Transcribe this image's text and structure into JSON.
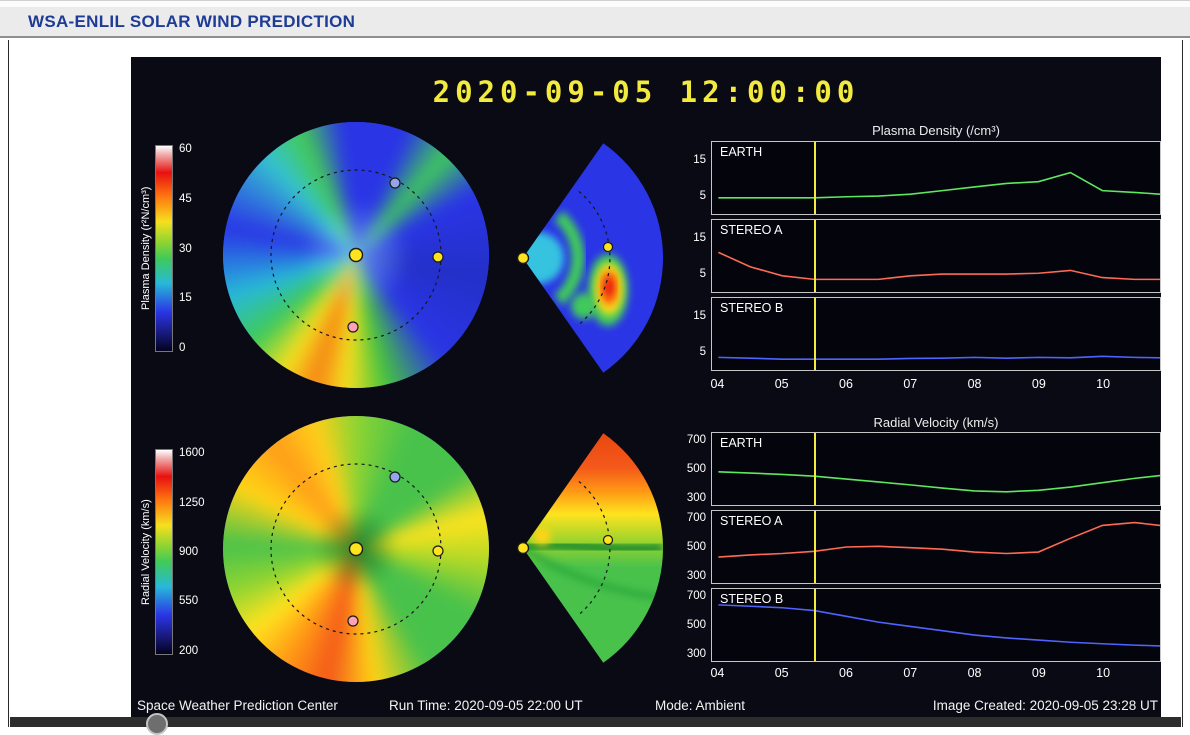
{
  "header": {
    "title": "WSA-ENLIL SOLAR WIND PREDICTION"
  },
  "viz": {
    "timestamp": "2020-09-05 12:00:00",
    "footer": {
      "source": "Space Weather Prediction Center",
      "run_time": "Run Time: 2020-09-05 22:00 UT",
      "mode": "Mode: Ambient",
      "created": "Image Created: 2020-09-05 23:28 UT"
    }
  },
  "density_map": {
    "colorbar_label": "Plasma Density (r²N/cm³)",
    "colorbar_ticks": [
      "60",
      "45",
      "30",
      "15",
      "0"
    ]
  },
  "velocity_map": {
    "colorbar_label": "Radial Velocity (km/s)",
    "colorbar_ticks": [
      "1600",
      "1250",
      "900",
      "550",
      "200"
    ]
  },
  "colors": {
    "background": "#0a0a14",
    "accent_yellow": "#f2ea3c",
    "sun": "#ffe31e",
    "earth": "#ffe31e",
    "stereo_a": "#ffa0b4",
    "stereo_b": "#97a3ea",
    "earth_line": "#5ee85e",
    "stereo_a_line": "#ff6a55",
    "stereo_b_line": "#4f63ff",
    "header_text": "#1e3c96"
  },
  "chart_data": [
    {
      "type": "line",
      "title": "Plasma Density (/cm³)",
      "x": [
        4,
        4.5,
        5,
        5.5,
        6,
        6.5,
        7,
        7.5,
        8,
        8.5,
        9,
        9.5,
        10,
        10.5,
        10.9
      ],
      "xlim": [
        3.9,
        10.9
      ],
      "ylim": [
        0,
        20
      ],
      "yticks": [
        15,
        5
      ],
      "xticks": [
        "04",
        "05",
        "06",
        "07",
        "08",
        "09",
        "10"
      ],
      "xtick_values": [
        4,
        5,
        6,
        7,
        8,
        9,
        10
      ],
      "now_marker_x": 5.5,
      "grid": false,
      "legend_position": "in-panel-labels",
      "series": [
        {
          "name": "EARTH",
          "color": "#5ee85e",
          "values": [
            4.5,
            4.5,
            4.5,
            4.5,
            4.8,
            5,
            5.5,
            6.5,
            7.5,
            8.5,
            9,
            11.5,
            6.5,
            6,
            5.5
          ]
        },
        {
          "name": "STEREO A",
          "color": "#ff6a55",
          "values": [
            11,
            7,
            4.5,
            3.5,
            3.5,
            3.5,
            4.5,
            5,
            5,
            5,
            5.2,
            6,
            4,
            3.5,
            3.5
          ]
        },
        {
          "name": "STEREO B",
          "color": "#4f63ff",
          "values": [
            3.5,
            3.3,
            3,
            3,
            3,
            3,
            3.2,
            3.3,
            3.5,
            3.3,
            3.5,
            3.4,
            3.8,
            3.5,
            3.4
          ]
        }
      ]
    },
    {
      "type": "line",
      "title": "Radial Velocity (km/s)",
      "x": [
        4,
        4.5,
        5,
        5.5,
        6,
        6.5,
        7,
        7.5,
        8,
        8.5,
        9,
        9.5,
        10,
        10.5,
        10.9
      ],
      "xlim": [
        3.9,
        10.9
      ],
      "ylim": [
        250,
        750
      ],
      "yticks": [
        700,
        500,
        300
      ],
      "xticks": [
        "04",
        "05",
        "06",
        "07",
        "08",
        "09",
        "10"
      ],
      "xtick_values": [
        4,
        5,
        6,
        7,
        8,
        9,
        10
      ],
      "now_marker_x": 5.5,
      "grid": false,
      "legend_position": "in-panel-labels",
      "series": [
        {
          "name": "EARTH",
          "color": "#5ee85e",
          "values": [
            480,
            472,
            462,
            450,
            430,
            410,
            390,
            368,
            348,
            342,
            352,
            375,
            405,
            435,
            455
          ]
        },
        {
          "name": "STEREO A",
          "color": "#ff6a55",
          "values": [
            430,
            445,
            455,
            470,
            500,
            505,
            495,
            485,
            465,
            455,
            465,
            560,
            650,
            670,
            650
          ]
        },
        {
          "name": "STEREO B",
          "color": "#4f63ff",
          "values": [
            640,
            630,
            620,
            600,
            560,
            520,
            490,
            460,
            430,
            410,
            395,
            380,
            370,
            360,
            355
          ]
        }
      ]
    }
  ]
}
